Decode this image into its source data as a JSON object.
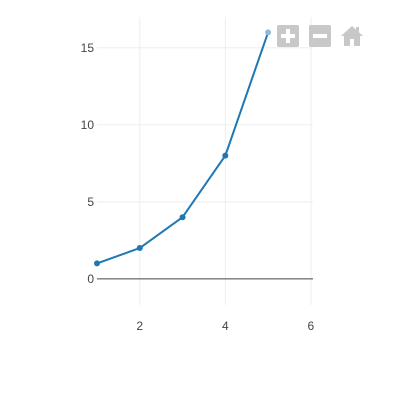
{
  "chart_data": {
    "type": "line",
    "title": "",
    "xlabel": "",
    "ylabel": "",
    "x": [
      1,
      2,
      3,
      4,
      5
    ],
    "series": [
      {
        "values": [
          1,
          2,
          4,
          8,
          16
        ]
      }
    ],
    "xlim": [
      1,
      6.05
    ],
    "ylim": [
      -1.7,
      17
    ],
    "xticks": [
      2,
      4,
      6
    ],
    "yticks": [
      0,
      5,
      10,
      15
    ],
    "xtick_labels": [
      "2",
      "4",
      "6"
    ],
    "ytick_labels": [
      "0",
      "5",
      "10",
      "15"
    ],
    "grid": true,
    "legend": "none",
    "highlighted_point_index": 4,
    "colors": {
      "line": "#1f77b4",
      "highlight": "#8fbbdb",
      "grid": "#eeeeee",
      "zeroline": "#444444",
      "modebar_icon": "#c8c8c8"
    }
  },
  "modebar": {
    "buttons": [
      {
        "icon": "zoom-in-icon"
      },
      {
        "icon": "zoom-out-icon"
      },
      {
        "icon": "home-icon"
      }
    ]
  }
}
